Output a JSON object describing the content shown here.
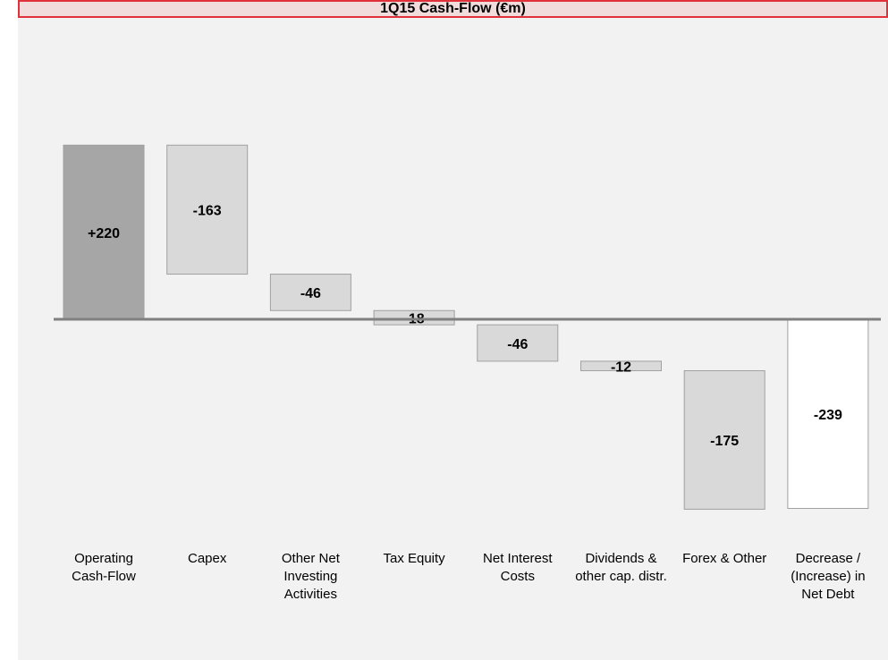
{
  "chart_data": {
    "type": "waterfall",
    "title": "1Q15 Cash-Flow (€m)",
    "categories": [
      "Operating Cash-Flow",
      "Capex",
      "Other Net Investing Activities",
      "Tax Equity",
      "Net Interest Costs",
      "Dividends & other cap. distr.",
      "Forex & Other",
      "Decrease / (Increase) in Net Debt"
    ],
    "values": [
      220,
      -163,
      -46,
      -18,
      -46,
      -12,
      -175,
      -239
    ],
    "value_labels": [
      "+220",
      "-163",
      "-46",
      "-18",
      "-46",
      "-12",
      "-175",
      "-239"
    ],
    "colors": [
      "#a6a6a6",
      "#d9d9d9",
      "#d9d9d9",
      "#d9d9d9",
      "#d9d9d9",
      "#d9d9d9",
      "#d9d9d9",
      "#ffffff"
    ],
    "totals": [
      7
    ]
  }
}
